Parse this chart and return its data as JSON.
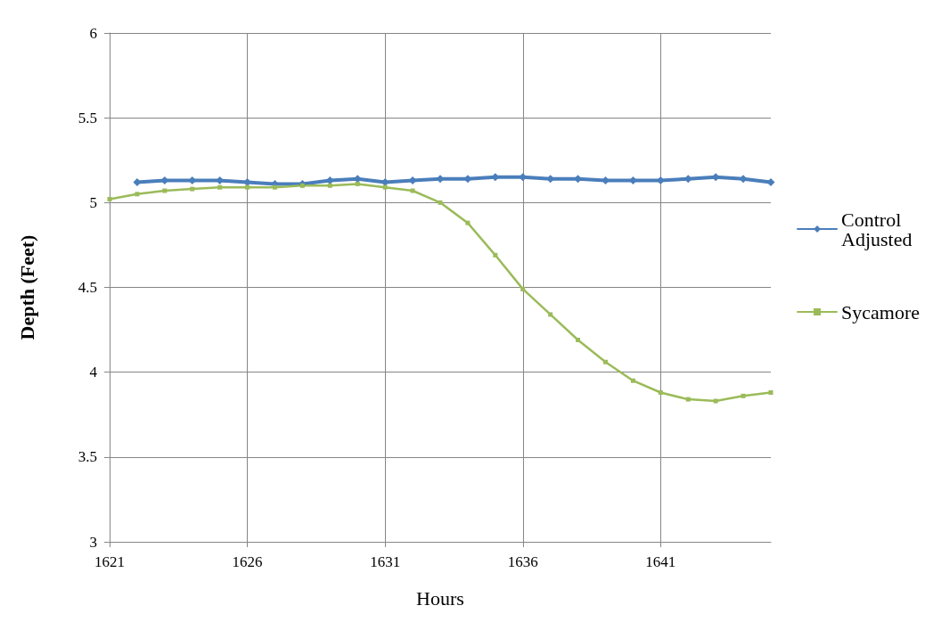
{
  "chart_data": {
    "type": "line",
    "xlabel": "Hours",
    "ylabel": "Depth (Feet)",
    "x": [
      1621,
      1622,
      1623,
      1624,
      1625,
      1626,
      1627,
      1628,
      1629,
      1630,
      1631,
      1632,
      1633,
      1634,
      1635,
      1636,
      1637,
      1638,
      1639,
      1640,
      1641,
      1642,
      1643,
      1644,
      1645
    ],
    "series": [
      {
        "name": "Control Adjusted",
        "color": "#4a7ebb",
        "marker": "diamond",
        "values": [
          null,
          5.12,
          5.13,
          5.13,
          5.13,
          5.12,
          5.11,
          5.11,
          5.13,
          5.14,
          5.12,
          5.13,
          5.14,
          5.14,
          5.15,
          5.15,
          5.14,
          5.14,
          5.13,
          5.13,
          5.13,
          5.14,
          5.15,
          5.14,
          5.12
        ]
      },
      {
        "name": "Sycamore",
        "color": "#9bbb59",
        "marker": "square",
        "values": [
          5.02,
          5.05,
          5.07,
          5.08,
          5.09,
          5.09,
          5.09,
          5.1,
          5.1,
          5.11,
          5.09,
          5.07,
          5.0,
          4.88,
          4.69,
          4.49,
          4.34,
          4.19,
          4.06,
          3.95,
          3.88,
          3.84,
          3.83,
          3.86,
          3.88
        ]
      }
    ],
    "xlim": [
      1621,
      1645
    ],
    "xticks": [
      1621,
      1626,
      1631,
      1636,
      1641
    ],
    "ylim": [
      3,
      6
    ],
    "yticks": [
      3,
      3.5,
      4,
      4.5,
      5,
      5.5,
      6
    ],
    "grid": true,
    "legend": "right"
  }
}
